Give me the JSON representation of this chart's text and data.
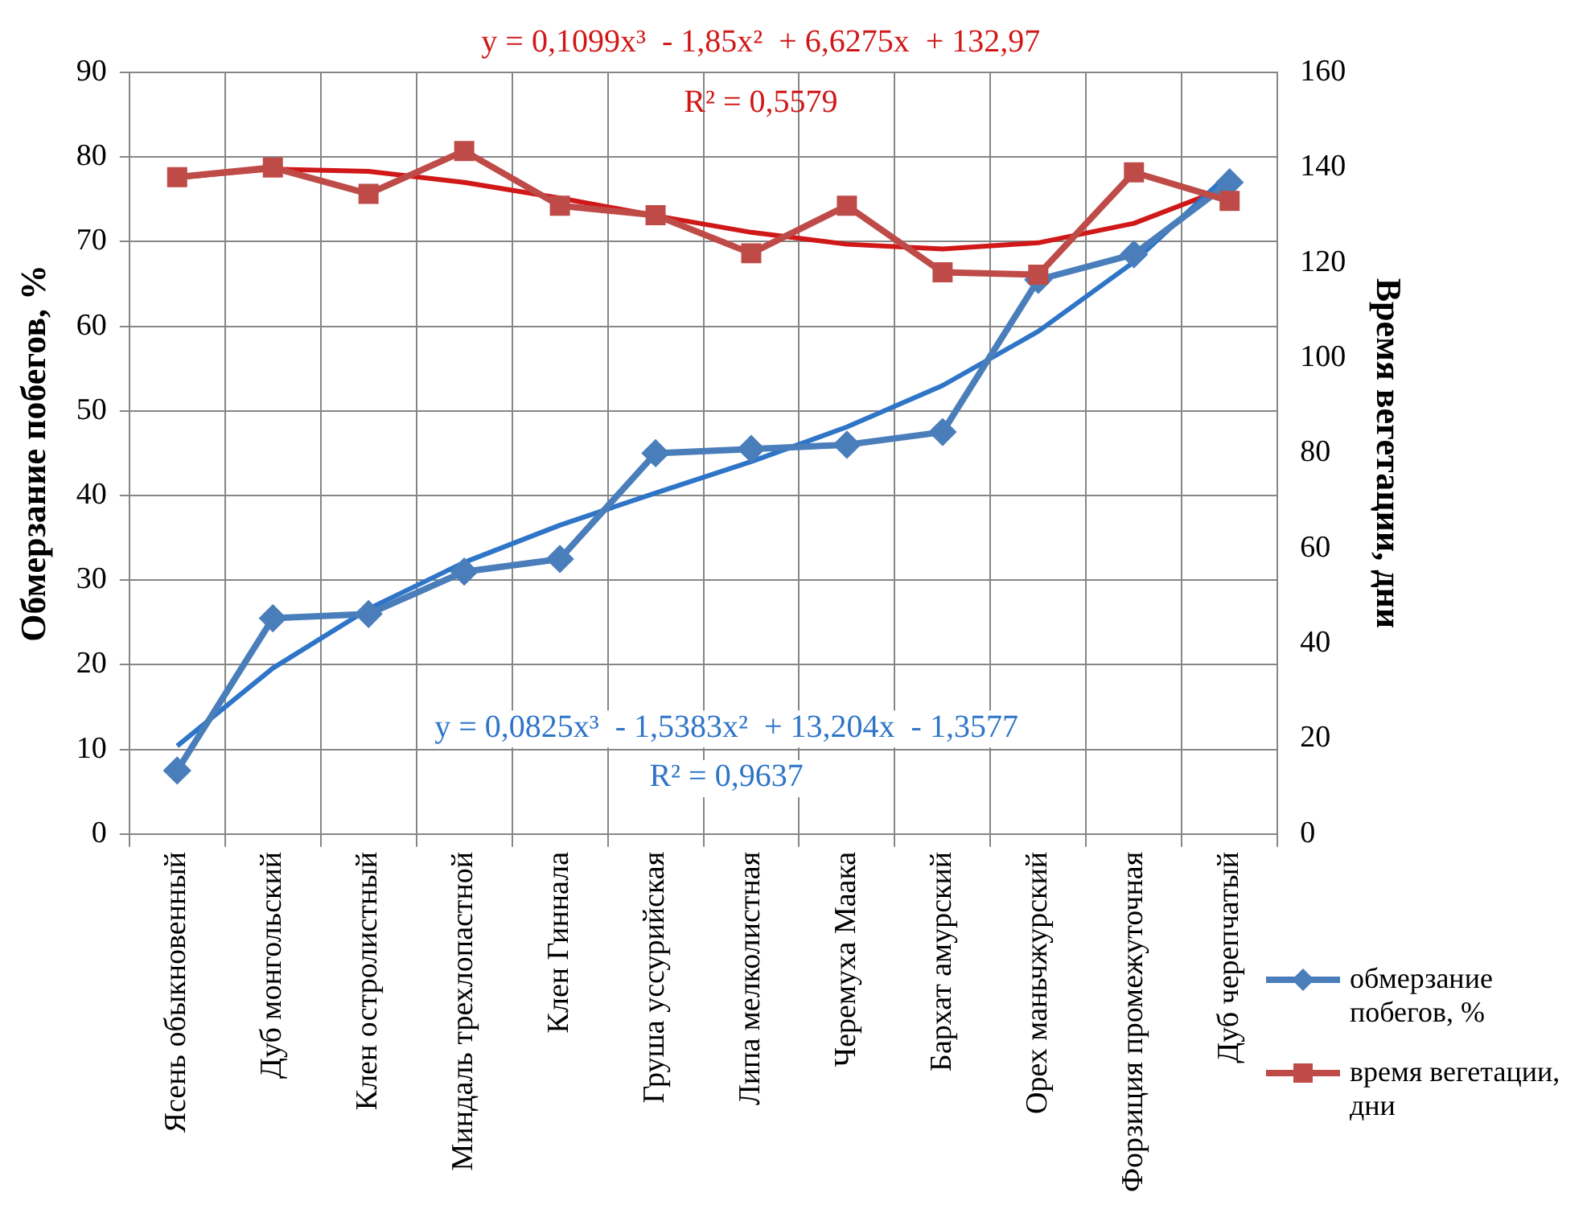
{
  "chart_data": {
    "type": "line",
    "categories": [
      "Ясень обыкновенный",
      "Дуб монгольский",
      "Клен остролистный",
      "Миндаль трехлопастной",
      "Клен Гиннала",
      "Груша уссурийская",
      "Липа мелколистная",
      "Черемуха Маака",
      "Бархат амурский",
      "Орех маньчжурский",
      "Форзиция промежуточная",
      "Дуб черепчатый"
    ],
    "series": [
      {
        "name": "обмерзание побегов, %",
        "color": "#4a7ebb",
        "marker": "diamond",
        "values": [
          7.5,
          25.5,
          26,
          31,
          32.5,
          45,
          45.5,
          46,
          47.5,
          65.5,
          68.5,
          77
        ]
      },
      {
        "name": "время вегетации, дни",
        "color": "#be4b48",
        "marker": "square",
        "axis": "y2",
        "values": [
          138,
          140,
          134.5,
          143.5,
          132,
          130,
          122,
          132,
          118,
          117.5,
          139,
          133
        ]
      },
      {
        "color": "#2e75c8",
        "marker": "none",
        "values": [
          10.4,
          19.6,
          26.6,
          32.1,
          36.5,
          40.3,
          44.0,
          48.1,
          53.0,
          59.4,
          67.6,
          78.1
        ]
      },
      {
        "color": "#d01818",
        "marker": "none",
        "axis": "y2",
        "values": [
          137.9,
          139.7,
          139.2,
          136.9,
          133.6,
          129.9,
          126.4,
          123.9,
          122.9,
          124.2,
          128.3,
          136.0
        ]
      }
    ],
    "ylabel": "Обмерзание побегов, %",
    "y2label": "Время вегетации, дни",
    "ylim": [
      0,
      90
    ],
    "yticks": [
      0,
      10,
      20,
      30,
      40,
      50,
      60,
      70,
      80,
      90
    ],
    "y2lim": [
      0,
      160
    ],
    "y2ticks": [
      0,
      20,
      40,
      60,
      80,
      100,
      120,
      140,
      160
    ],
    "annotations": [
      "y = 0,1099x³  - 1,85x²  + 6,6275x  + 132,97",
      "R² = 0,5579",
      "y = 0,0825x³  - 1,5383x²  + 13,204x  - 1,3577",
      "R² = 0,9637"
    ],
    "grid": true,
    "legend": "bottom right"
  }
}
